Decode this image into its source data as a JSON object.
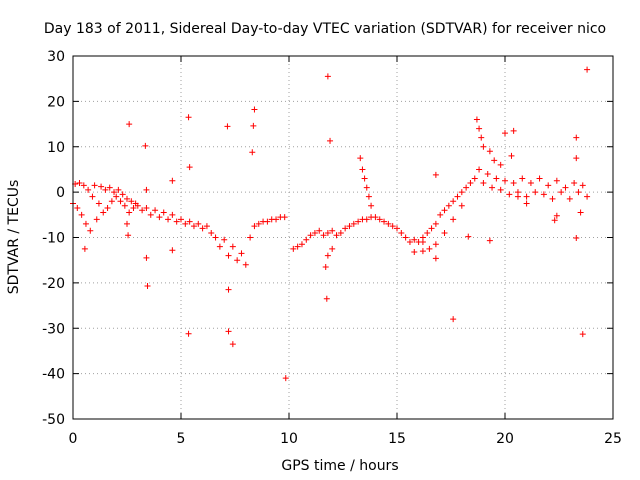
{
  "chart_data": {
    "type": "scatter",
    "title": "Day 183 of 2011, Sidereal Day-to-day VTEC variation (SDTVAR) for receiver nico",
    "xlabel": "GPS time / hours",
    "ylabel": "SDTVAR / TECUs",
    "xlim": [
      0,
      25
    ],
    "ylim": [
      -50,
      30
    ],
    "xticks": [
      0,
      5,
      10,
      15,
      20,
      25
    ],
    "xtick_labels": [
      "0",
      "5",
      "10",
      "15",
      "20",
      "25"
    ],
    "yticks": [
      -50,
      -40,
      -30,
      -20,
      -10,
      0,
      10,
      20,
      30
    ],
    "ytick_labels": [
      "-50",
      "-40",
      "-30",
      "-20",
      "-10",
      "0",
      "10",
      "20",
      "30"
    ],
    "grid": true,
    "marker": "+",
    "color": "#ff0000",
    "series": [
      {
        "name": "SDTVAR",
        "points": [
          [
            0.0,
            -2.5
          ],
          [
            0.1,
            1.8
          ],
          [
            0.2,
            -3.5
          ],
          [
            0.3,
            2.0
          ],
          [
            0.4,
            -5.0
          ],
          [
            0.5,
            1.5
          ],
          [
            0.6,
            -7.0
          ],
          [
            0.7,
            0.5
          ],
          [
            0.8,
            -8.5
          ],
          [
            0.9,
            -1.0
          ],
          [
            1.0,
            1.5
          ],
          [
            1.1,
            -6.0
          ],
          [
            1.2,
            -2.5
          ],
          [
            1.3,
            1.2
          ],
          [
            1.4,
            -4.5
          ],
          [
            1.5,
            0.5
          ],
          [
            1.6,
            -3.5
          ],
          [
            1.7,
            1.0
          ],
          [
            1.8,
            -2.0
          ],
          [
            1.9,
            0.0
          ],
          [
            2.0,
            -1.0
          ],
          [
            2.1,
            0.5
          ],
          [
            2.2,
            -2.0
          ],
          [
            2.3,
            -0.5
          ],
          [
            2.4,
            -3.0
          ],
          [
            2.5,
            -1.5
          ],
          [
            2.6,
            -4.5
          ],
          [
            2.7,
            -2.0
          ],
          [
            2.8,
            -3.5
          ],
          [
            2.9,
            -2.5
          ],
          [
            3.0,
            -3.0
          ],
          [
            3.2,
            -4.0
          ],
          [
            3.4,
            -3.5
          ],
          [
            3.6,
            -5.0
          ],
          [
            3.8,
            -4.0
          ],
          [
            4.0,
            -5.5
          ],
          [
            4.2,
            -4.5
          ],
          [
            4.4,
            -6.0
          ],
          [
            4.6,
            -5.0
          ],
          [
            4.8,
            -6.5
          ],
          [
            5.0,
            -6.0
          ],
          [
            5.2,
            -7.0
          ],
          [
            5.4,
            -6.5
          ],
          [
            5.6,
            -7.5
          ],
          [
            5.8,
            -7.0
          ],
          [
            6.0,
            -8.0
          ],
          [
            6.2,
            -7.5
          ],
          [
            6.4,
            -9.0
          ],
          [
            6.6,
            -10.0
          ],
          [
            6.8,
            -12.0
          ],
          [
            7.0,
            -10.5
          ],
          [
            7.2,
            -14.0
          ],
          [
            7.4,
            -12.0
          ],
          [
            7.6,
            -15.0
          ],
          [
            7.8,
            -13.5
          ],
          [
            8.0,
            -16.0
          ],
          [
            8.2,
            -10.0
          ],
          [
            8.4,
            -7.5
          ],
          [
            8.6,
            -7.0
          ],
          [
            8.8,
            -6.5
          ],
          [
            9.0,
            -6.5
          ],
          [
            9.2,
            -6.0
          ],
          [
            9.4,
            -6.0
          ],
          [
            9.6,
            -5.5
          ],
          [
            9.8,
            -5.5
          ],
          [
            10.2,
            -12.5
          ],
          [
            10.4,
            -12.0
          ],
          [
            10.6,
            -11.5
          ],
          [
            10.8,
            -10.5
          ],
          [
            11.0,
            -9.5
          ],
          [
            11.2,
            -9.0
          ],
          [
            11.4,
            -8.5
          ],
          [
            11.6,
            -9.5
          ],
          [
            11.8,
            -9.0
          ],
          [
            12.0,
            -8.5
          ],
          [
            12.2,
            -9.5
          ],
          [
            12.4,
            -9.0
          ],
          [
            12.6,
            -8.0
          ],
          [
            12.8,
            -7.5
          ],
          [
            13.0,
            -7.0
          ],
          [
            13.2,
            -6.5
          ],
          [
            13.4,
            -6.0
          ],
          [
            13.6,
            -6.0
          ],
          [
            13.8,
            -5.5
          ],
          [
            14.0,
            -5.5
          ],
          [
            14.2,
            -6.0
          ],
          [
            14.4,
            -6.5
          ],
          [
            14.6,
            -7.0
          ],
          [
            14.8,
            -7.5
          ],
          [
            15.0,
            -8.0
          ],
          [
            15.2,
            -9.0
          ],
          [
            15.4,
            -10.0
          ],
          [
            15.6,
            -11.0
          ],
          [
            15.8,
            -10.5
          ],
          [
            16.0,
            -11.0
          ],
          [
            16.2,
            -10.0
          ],
          [
            16.4,
            -9.0
          ],
          [
            16.6,
            -8.0
          ],
          [
            16.8,
            -7.0
          ],
          [
            17.0,
            -5.0
          ],
          [
            17.2,
            -4.0
          ],
          [
            17.4,
            -3.0
          ],
          [
            17.6,
            -2.0
          ],
          [
            17.8,
            -1.0
          ],
          [
            18.0,
            0.0
          ],
          [
            18.2,
            1.0
          ],
          [
            18.4,
            2.0
          ],
          [
            18.6,
            3.0
          ],
          [
            18.8,
            5.0
          ],
          [
            19.0,
            2.0
          ],
          [
            19.2,
            4.0
          ],
          [
            19.4,
            1.0
          ],
          [
            19.6,
            3.0
          ],
          [
            19.8,
            0.5
          ],
          [
            20.0,
            2.5
          ],
          [
            20.2,
            -0.5
          ],
          [
            20.4,
            2.0
          ],
          [
            20.6,
            0.0
          ],
          [
            20.8,
            3.0
          ],
          [
            21.0,
            -1.0
          ],
          [
            21.2,
            2.0
          ],
          [
            21.4,
            0.0
          ],
          [
            21.6,
            3.0
          ],
          [
            21.8,
            -0.5
          ],
          [
            22.0,
            1.5
          ],
          [
            22.2,
            -1.5
          ],
          [
            22.4,
            2.5
          ],
          [
            22.6,
            0.0
          ],
          [
            22.8,
            1.0
          ],
          [
            23.0,
            -1.5
          ],
          [
            23.2,
            2.0
          ],
          [
            23.4,
            0.0
          ],
          [
            23.6,
            1.5
          ],
          [
            23.8,
            -1.0
          ],
          [
            13.3,
            7.5
          ],
          [
            13.4,
            5.0
          ],
          [
            13.5,
            3.0
          ],
          [
            13.6,
            1.0
          ],
          [
            13.7,
            -1.0
          ],
          [
            13.8,
            -3.0
          ],
          [
            16.2,
            -13.0
          ],
          [
            16.5,
            -12.5
          ],
          [
            16.8,
            -11.5
          ],
          [
            17.2,
            -9.0
          ],
          [
            17.6,
            -6.0
          ],
          [
            18.0,
            -3.0
          ],
          [
            18.7,
            16.0
          ],
          [
            18.8,
            14.0
          ],
          [
            18.9,
            12.0
          ],
          [
            19.0,
            10.0
          ],
          [
            19.3,
            9.0
          ],
          [
            19.5,
            7.0
          ],
          [
            19.8,
            6.0
          ],
          [
            2.6,
            15.0
          ],
          [
            3.35,
            10.2
          ],
          [
            5.35,
            16.5
          ],
          [
            5.4,
            5.5
          ],
          [
            7.15,
            14.5
          ],
          [
            8.4,
            18.2
          ],
          [
            8.35,
            14.6
          ],
          [
            8.3,
            8.8
          ],
          [
            11.8,
            25.5
          ],
          [
            11.9,
            11.3
          ],
          [
            11.8,
            -14.0
          ],
          [
            11.7,
            -16.5
          ],
          [
            11.75,
            -23.5
          ],
          [
            12.0,
            -12.5
          ],
          [
            0.55,
            -12.5
          ],
          [
            2.5,
            -7.0
          ],
          [
            2.55,
            -9.5
          ],
          [
            3.4,
            -14.5
          ],
          [
            3.45,
            -20.7
          ],
          [
            3.4,
            0.5
          ],
          [
            4.6,
            -12.8
          ],
          [
            4.6,
            2.5
          ],
          [
            5.35,
            -31.2
          ],
          [
            7.2,
            -21.5
          ],
          [
            7.2,
            -30.7
          ],
          [
            7.4,
            -33.5
          ],
          [
            9.85,
            -41.0
          ],
          [
            15.8,
            -13.2
          ],
          [
            16.2,
            -11.0
          ],
          [
            16.8,
            -14.6
          ],
          [
            16.8,
            3.8
          ],
          [
            17.6,
            -28.0
          ],
          [
            18.3,
            -9.8
          ],
          [
            19.3,
            -10.7
          ],
          [
            20.0,
            13.0
          ],
          [
            20.4,
            13.5
          ],
          [
            20.3,
            8.0
          ],
          [
            22.3,
            -6.2
          ],
          [
            22.4,
            -5.2
          ],
          [
            23.3,
            -10.1
          ],
          [
            23.3,
            12.0
          ],
          [
            23.6,
            -31.3
          ],
          [
            23.8,
            27.0
          ],
          [
            23.3,
            7.5
          ],
          [
            23.5,
            -4.5
          ],
          [
            21.0,
            -2.5
          ],
          [
            20.6,
            -1.0
          ]
        ]
      }
    ]
  }
}
